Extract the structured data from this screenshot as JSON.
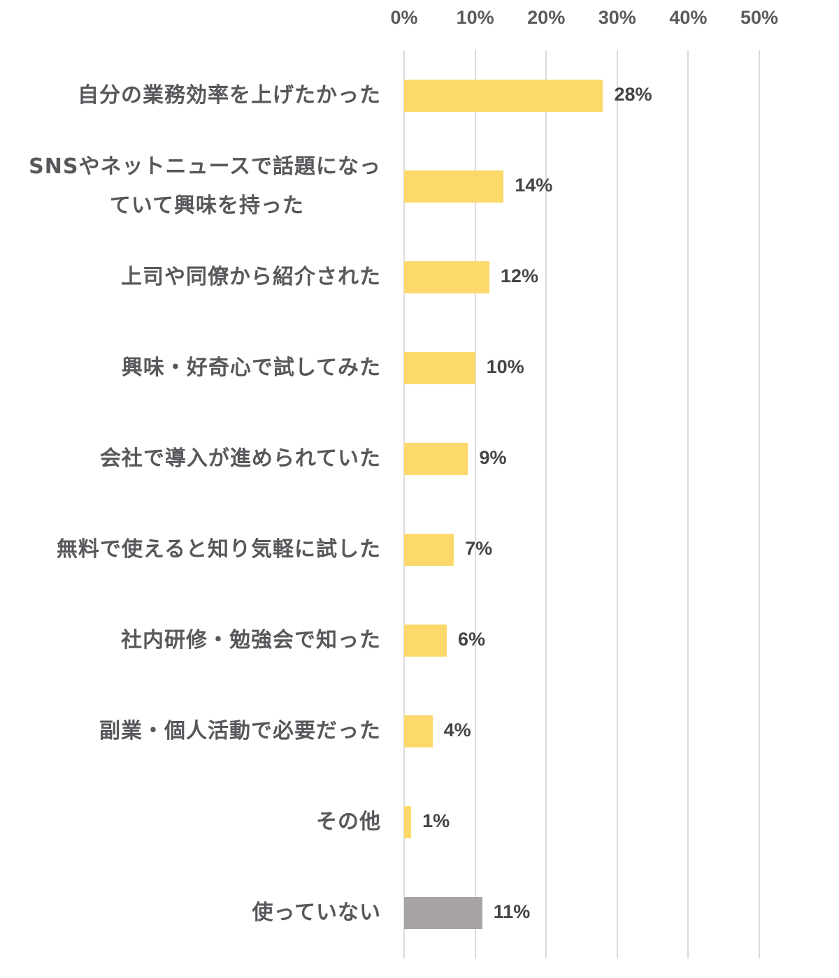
{
  "chart_data": {
    "type": "bar",
    "orientation": "horizontal",
    "title": "",
    "xlabel": "",
    "ylabel": "",
    "xlim": [
      0,
      50
    ],
    "x_ticks": [
      "0%",
      "10%",
      "20%",
      "30%",
      "40%",
      "50%"
    ],
    "grid": true,
    "legend": null,
    "categories": [
      "自分の業務効率を上げたかった",
      "SNSやネットニュースで話題になっていて興味を持った",
      "上司や同僚から紹介された",
      "興味・好奇心で試してみた",
      "会社で導入が進められていた",
      "無料で使えると知り気軽に試した",
      "社内研修・勉強会で知った",
      "副業・個人活動で必要だった",
      "その他",
      "使っていない"
    ],
    "values": [
      28,
      14,
      12,
      10,
      9,
      7,
      6,
      4,
      1,
      11
    ],
    "value_labels": [
      "28%",
      "14%",
      "12%",
      "10%",
      "9%",
      "7%",
      "6%",
      "4%",
      "1%",
      "11%"
    ],
    "colors": {
      "default_bar": "#fcd96a",
      "highlight_bar": "#a8a4a6",
      "grid": "#dddadd",
      "text": "#58585c"
    }
  },
  "axis": {
    "ticks": [
      "0%",
      "10%",
      "20%",
      "30%",
      "40%",
      "50%"
    ]
  },
  "rows": [
    {
      "label_line1": "自分の業務効率を上げたかった",
      "label_line2": "",
      "value": "28%"
    },
    {
      "label_line1": "SNSやネットニュースで話題になっ",
      "label_line2": "ていて興味を持った",
      "value": "14%"
    },
    {
      "label_line1": "上司や同僚から紹介された",
      "label_line2": "",
      "value": "12%"
    },
    {
      "label_line1": "興味・好奇心で試してみた",
      "label_line2": "",
      "value": "10%"
    },
    {
      "label_line1": "会社で導入が進められていた",
      "label_line2": "",
      "value": "9%"
    },
    {
      "label_line1": "無料で使えると知り気軽に試した",
      "label_line2": "",
      "value": "7%"
    },
    {
      "label_line1": "社内研修・勉強会で知った",
      "label_line2": "",
      "value": "6%"
    },
    {
      "label_line1": "副業・個人活動で必要だった",
      "label_line2": "",
      "value": "4%"
    },
    {
      "label_line1": "その他",
      "label_line2": "",
      "value": "1%"
    },
    {
      "label_line1": "使っていない",
      "label_line2": "",
      "value": "11%"
    }
  ]
}
